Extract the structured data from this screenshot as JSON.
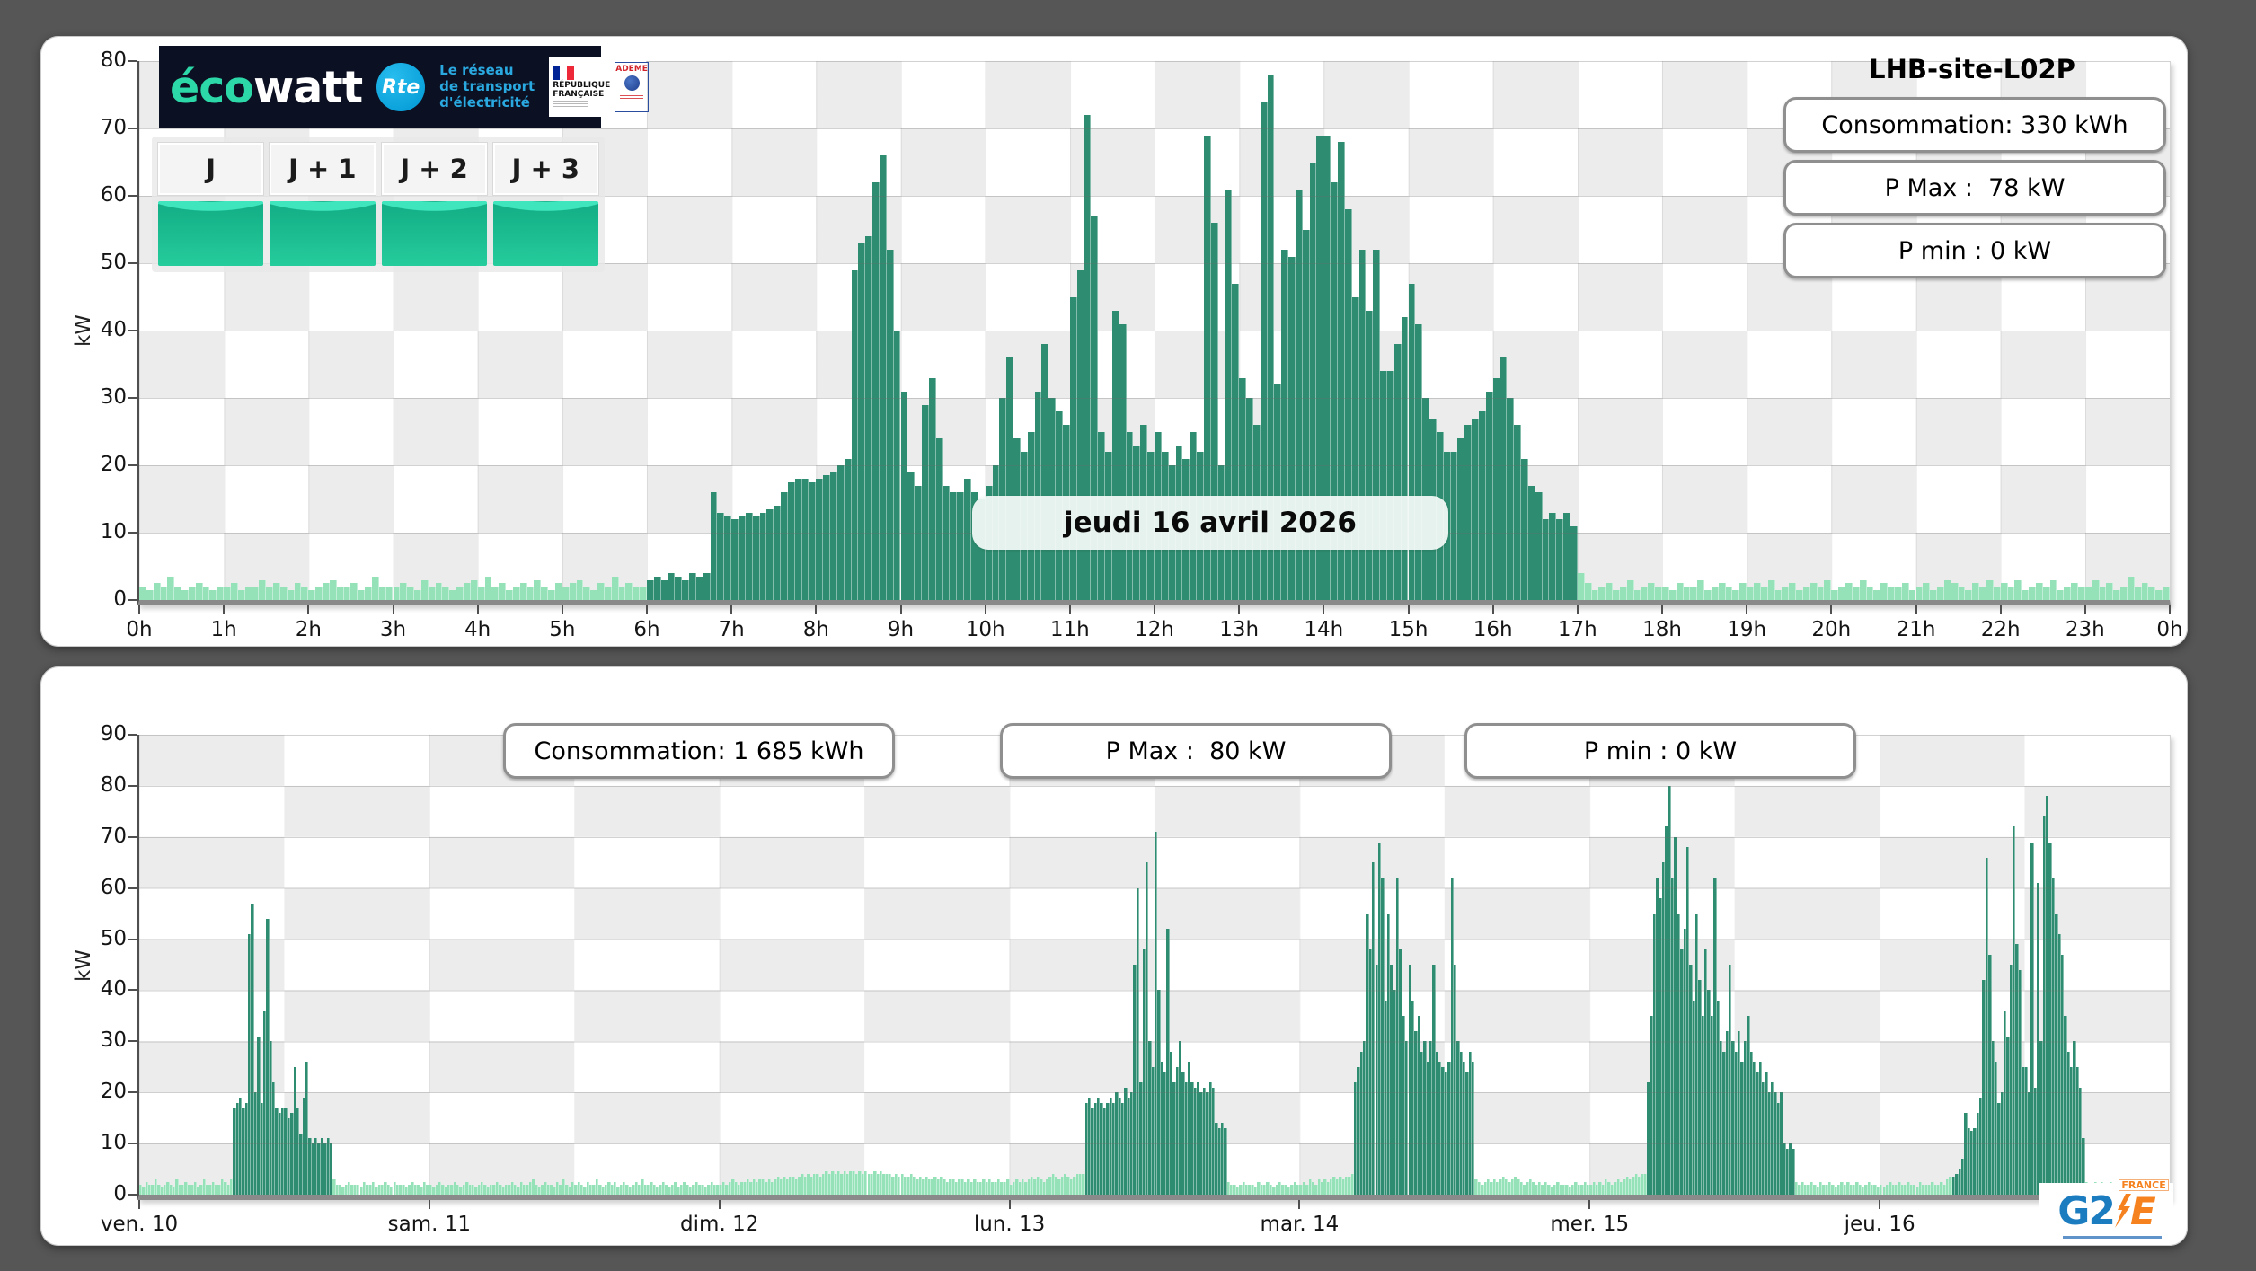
{
  "site": {
    "title": "LHB-site-L02P"
  },
  "date_label": "jeudi 16 avril 2026",
  "daily_stats": {
    "consumption": "Consommation: 330 kWh",
    "pmax": "P Max :  78 kW",
    "pmin": "P min : 0 kW"
  },
  "weekly_stats": {
    "consumption": "Consommation: 1 685 kWh",
    "pmax": "P Max :  80 kW",
    "pmin": "P min : 0 kW"
  },
  "banner": {
    "brand_eco": "éco",
    "brand_watt": "watt",
    "rte": "Rte",
    "rte_tagline": [
      "Le réseau",
      "de transport",
      "d'électricité"
    ],
    "republique": "RÉPUBLIQUE\nFRANÇAISE",
    "ademe": "ADEME"
  },
  "forecast": {
    "labels": [
      "J",
      "J + 1",
      "J + 2",
      "J + 3"
    ]
  },
  "g2e": {
    "g2": "G2",
    "e": "E",
    "france": "FRANCE"
  },
  "chart_data": [
    {
      "type": "bar",
      "title": "jeudi 16 avril 2026",
      "ylabel": "kW",
      "ylim": [
        0,
        80
      ],
      "yticks": [
        0,
        10,
        20,
        30,
        40,
        50,
        60,
        70,
        80
      ],
      "xticks": [
        "0h",
        "1h",
        "2h",
        "3h",
        "4h",
        "5h",
        "6h",
        "7h",
        "8h",
        "9h",
        "10h",
        "11h",
        "12h",
        "13h",
        "14h",
        "15h",
        "16h",
        "17h",
        "18h",
        "19h",
        "20h",
        "21h",
        "22h",
        "23h",
        "0h"
      ],
      "interval_minutes": 5,
      "grid": true,
      "colors": {
        "active": "#2e8d70",
        "standby": "#95e2b8"
      },
      "active_range": [
        72,
        204
      ],
      "series": [
        {
          "name": "Puissance (kW)",
          "values": [
            2,
            1.5,
            2.5,
            2,
            3.5,
            2,
            1.5,
            2,
            2.5,
            2,
            1.5,
            2,
            2,
            2.5,
            1.5,
            2,
            2,
            3,
            2,
            2.5,
            2,
            1.5,
            2.5,
            2,
            1.5,
            2,
            2.5,
            3,
            2,
            2,
            2.5,
            1.5,
            2,
            3.5,
            2,
            2,
            2,
            2.5,
            2,
            1.5,
            3,
            2,
            2.5,
            2,
            1.5,
            2,
            2.5,
            3,
            2,
            3.5,
            2,
            2.5,
            1.5,
            2,
            2.5,
            2,
            3,
            2,
            1.5,
            2.5,
            2,
            2.5,
            3,
            2,
            1.5,
            2.5,
            2,
            3.5,
            2,
            2.5,
            2,
            2,
            3,
            3.5,
            3,
            4,
            3.5,
            3,
            4,
            3.5,
            4,
            16,
            13,
            12.5,
            12,
            12.5,
            13,
            12.5,
            13,
            13.5,
            14,
            16,
            17.5,
            18,
            18,
            17.5,
            18,
            18.5,
            19,
            20,
            21,
            49,
            53,
            54,
            62,
            66,
            52,
            40,
            31,
            19,
            17,
            29,
            33,
            24,
            17,
            16,
            16,
            18,
            16,
            15,
            17,
            20,
            30,
            36,
            24,
            22,
            25,
            31,
            38,
            30,
            28,
            26,
            45,
            49,
            72,
            57,
            25,
            22,
            43,
            41,
            25,
            23,
            26,
            22,
            25,
            22,
            20,
            23,
            21,
            25,
            22,
            69,
            56,
            20,
            61,
            47,
            33,
            30,
            26,
            74,
            78,
            32,
            52,
            51,
            61,
            55,
            65,
            69,
            69,
            62,
            68,
            58,
            45,
            52,
            43,
            52,
            34,
            34,
            38,
            42,
            47,
            41,
            30,
            27,
            25,
            22,
            22,
            24,
            26,
            27,
            28,
            31,
            33,
            36,
            30,
            26,
            21,
            17,
            16,
            12,
            13,
            12,
            13,
            11,
            4,
            2.5,
            1.5,
            2,
            2.5,
            1.5,
            2,
            3,
            1.5,
            2,
            2.5,
            2,
            2,
            1.5,
            2.5,
            2,
            2,
            3,
            1.5,
            2,
            2.5,
            2,
            1.5,
            2.5,
            2,
            2.5,
            2,
            3,
            1.5,
            2,
            2.5,
            1.5,
            2,
            2.5,
            2,
            3,
            1.5,
            2,
            2.5,
            2,
            3,
            2,
            1.5,
            2.5,
            2,
            2,
            2.5,
            1.5,
            2,
            2.5,
            1.5,
            2,
            3,
            2.5,
            2,
            1.5,
            2.5,
            2,
            3,
            2,
            2.5,
            2,
            3,
            1.5,
            2,
            2.5,
            2,
            3,
            1.5,
            2,
            2.5,
            2,
            2,
            3,
            2,
            2.5,
            1.5,
            2,
            3.5,
            2,
            2.5,
            2,
            1.5,
            2
          ]
        }
      ]
    },
    {
      "type": "bar",
      "title": "",
      "ylabel": "kW",
      "ylim": [
        0,
        90
      ],
      "yticks": [
        0,
        10,
        20,
        30,
        40,
        50,
        60,
        70,
        80,
        90
      ],
      "xticks": [
        "ven. 10",
        "sam. 11",
        "dim. 12",
        "lun. 13",
        "mar. 14",
        "mer. 15",
        "jeu. 16"
      ],
      "interval_minutes": 15,
      "grid": true,
      "colors": {
        "active": "#2e8d70",
        "standby": "#95e2b8"
      },
      "days": [
        {
          "label": "ven. 10",
          "active_range": [
            31,
            64
          ],
          "values": [
            2,
            1.5,
            2.5,
            2,
            2,
            3,
            2,
            1.5,
            2,
            2.5,
            2,
            1.5,
            3,
            2,
            2,
            2.5,
            2,
            2,
            2.5,
            1.5,
            2,
            3,
            2,
            2,
            2.5,
            2,
            2,
            3,
            2.5,
            2,
            3,
            17,
            18,
            19,
            17,
            18,
            51,
            57,
            20,
            31,
            18,
            36,
            54,
            30,
            22,
            17,
            16,
            17,
            17,
            15,
            16,
            25,
            17,
            12,
            19,
            26,
            11,
            10,
            11,
            10,
            11,
            10,
            11,
            10,
            3,
            2,
            2,
            1.5,
            2,
            2.5,
            2,
            2,
            2,
            1.5,
            2.5,
            2,
            2,
            2.5,
            1.5,
            2,
            2,
            2.5,
            2,
            1.5,
            2.5,
            2,
            2,
            2,
            1.5,
            2,
            2.5,
            2,
            2,
            1.5,
            2.5,
            2
          ]
        },
        {
          "label": "sam. 11",
          "active_range": null,
          "values": [
            2,
            1.5,
            2,
            2.5,
            2,
            1.5,
            2,
            2,
            2.5,
            2,
            1.5,
            2,
            2.5,
            2,
            2,
            1.5,
            2,
            2.5,
            2,
            1.5,
            2,
            2,
            2.5,
            2,
            1.5,
            2,
            2,
            2.5,
            2,
            1.5,
            2.5,
            2,
            2,
            2.5,
            3,
            2,
            1.5,
            2,
            2.5,
            2,
            2,
            1.5,
            2.5,
            2,
            3,
            2,
            1.5,
            2.5,
            2,
            2.5,
            2,
            1.5,
            2.5,
            2,
            2,
            3,
            2,
            1.5,
            2,
            2.5,
            2,
            2.5,
            1.5,
            2,
            2.5,
            2,
            1.5,
            2,
            2.5,
            2,
            3,
            2,
            2,
            2.5,
            2,
            1.5,
            2,
            2.5,
            2,
            1.5,
            2,
            2.5,
            1.5,
            2,
            2.5,
            2,
            1.5,
            2,
            2.5,
            2,
            2,
            1.5,
            2,
            2.5,
            2,
            2
          ]
        },
        {
          "label": "dim. 12",
          "active_range": null,
          "values": [
            2,
            2.5,
            2,
            2.5,
            3,
            2.5,
            2,
            2.5,
            2.5,
            3,
            2.5,
            3,
            2.5,
            3,
            3,
            2.5,
            3,
            2.5,
            3,
            3.5,
            3,
            3.5,
            3,
            3.5,
            3.5,
            3,
            3.5,
            4,
            3.5,
            4,
            3.5,
            4,
            4,
            3.5,
            4,
            4.5,
            4,
            4.5,
            4,
            4.5,
            4,
            4.5,
            4,
            4.5,
            4.5,
            4,
            4.5,
            4,
            4.5,
            4,
            4,
            4.5,
            4,
            4.5,
            4,
            4,
            4,
            3.5,
            4,
            3.5,
            4,
            3.5,
            3.5,
            4,
            3.5,
            3,
            3.5,
            3,
            3.5,
            3,
            3,
            3.5,
            3,
            3.5,
            3,
            2.5,
            3,
            3,
            2.5,
            3,
            3,
            2.5,
            3,
            2.5,
            3,
            2.5,
            2.5,
            3,
            2.5,
            3,
            2.5,
            2.5,
            3,
            2.5,
            2.5,
            3
          ]
        },
        {
          "label": "lun. 13",
          "active_range": [
            25,
            72
          ],
          "values": [
            2,
            2.5,
            3,
            2.5,
            3,
            2.5,
            3,
            3.5,
            3,
            3.5,
            3,
            2.5,
            3,
            3.5,
            4,
            3.5,
            3,
            3.5,
            4,
            3.5,
            3,
            3.5,
            4,
            4,
            4,
            18,
            19,
            17,
            18,
            19,
            18,
            17,
            18,
            19,
            18,
            20,
            19,
            18,
            21,
            19,
            20,
            45,
            60,
            22,
            48,
            65,
            30,
            25,
            71,
            40,
            26,
            24,
            52,
            28,
            22,
            25,
            30,
            24,
            22,
            26,
            22,
            21,
            22,
            20,
            21,
            20,
            22,
            21,
            14,
            13,
            14,
            13,
            2.5,
            2,
            2,
            1.5,
            2,
            2.5,
            2,
            2,
            2,
            1.5,
            2.5,
            2,
            2,
            2.5,
            2,
            1.5,
            2,
            2.5,
            2,
            2,
            1.5,
            2,
            2.5,
            2
          ]
        },
        {
          "label": "mar. 14",
          "active_range": [
            18,
            58
          ],
          "values": [
            2,
            2.5,
            2,
            3,
            2.5,
            2,
            3,
            2.5,
            3,
            2.5,
            3,
            3.5,
            3,
            3.5,
            3,
            3.5,
            3.5,
            4,
            22,
            25,
            28,
            30,
            55,
            48,
            65,
            45,
            69,
            62,
            38,
            55,
            45,
            40,
            62,
            48,
            35,
            30,
            45,
            38,
            32,
            35,
            28,
            30,
            26,
            30,
            45,
            28,
            26,
            25,
            24,
            26,
            62,
            45,
            30,
            28,
            26,
            24,
            28,
            26,
            3,
            2.5,
            2,
            2.5,
            3,
            2.5,
            3,
            2.5,
            3,
            3.5,
            3,
            2.5,
            3,
            3.5,
            3,
            2.5,
            2,
            2.5,
            3,
            2.5,
            2,
            2.5,
            2,
            2.5,
            2,
            1.5,
            2,
            2.5,
            2,
            2,
            2,
            1.5,
            2,
            2.5,
            2,
            2,
            2.5,
            2
          ]
        },
        {
          "label": "mer. 15",
          "active_range": [
            19,
            68
          ],
          "values": [
            2,
            2.5,
            2,
            2.5,
            2,
            3,
            2.5,
            2,
            2.5,
            3,
            2.5,
            3,
            3.5,
            3,
            3.5,
            4,
            3.5,
            4,
            4,
            22,
            35,
            55,
            62,
            58,
            65,
            72,
            80,
            62,
            70,
            55,
            48,
            52,
            68,
            45,
            38,
            55,
            42,
            35,
            48,
            40,
            35,
            62,
            38,
            30,
            28,
            32,
            45,
            30,
            28,
            32,
            26,
            30,
            35,
            28,
            26,
            24,
            26,
            22,
            24,
            20,
            22,
            20,
            18,
            20,
            10,
            9,
            10,
            9,
            2.5,
            2,
            2.5,
            2,
            2,
            2.5,
            2,
            1.5,
            2.5,
            2,
            2,
            2.5,
            2,
            1.5,
            2,
            2.5,
            2,
            2.5,
            2,
            2,
            2.5,
            2,
            1.5,
            2,
            2.5,
            2,
            2,
            1.5
          ]
        },
        {
          "label": "jeu. 16",
          "active_range": [
            24,
            68
          ],
          "values": [
            2,
            1.5,
            2,
            2.5,
            2,
            2,
            2.5,
            2,
            2,
            2.5,
            2,
            2,
            1.5,
            2.5,
            2,
            2,
            2,
            2.5,
            2,
            2,
            2.5,
            2,
            3,
            3.5,
            3.5,
            4,
            5,
            7,
            16,
            13,
            12.5,
            13,
            16,
            19,
            42,
            66,
            47,
            30,
            26,
            18,
            20,
            36,
            31,
            45,
            72,
            49,
            44,
            25,
            25,
            20,
            69,
            21,
            61,
            30,
            74,
            78,
            69,
            62,
            55,
            51,
            47,
            35,
            28,
            25,
            30,
            25,
            21,
            11,
            2.5,
            2,
            2,
            2.5,
            2,
            2.5,
            1.5,
            2,
            2.5,
            2,
            2,
            1.5,
            2,
            2.5,
            2,
            1.5,
            2,
            2.5,
            2,
            2,
            1.5,
            2,
            2.5,
            2,
            2,
            2.5,
            2,
            2
          ]
        }
      ]
    }
  ]
}
